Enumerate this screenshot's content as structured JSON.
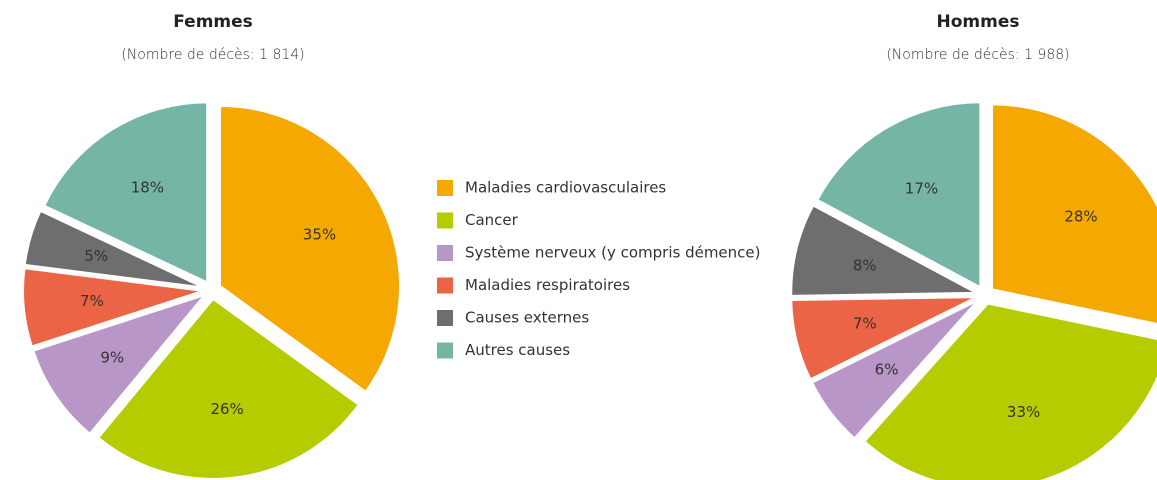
{
  "chart_data": [
    {
      "type": "pie",
      "title": "Femmes",
      "subtitle": "(Nombre de décès: 1 814)",
      "categories": [
        "Maladies cardiovasculaires",
        "Cancer",
        "Système nerveux (y compris démence)",
        "Maladies respiratoires",
        "Causes externes",
        "Autres causes"
      ],
      "values": [
        35,
        26,
        9,
        7,
        5,
        18
      ],
      "value_labels": [
        "35%",
        "26%",
        "9%",
        "7%",
        "5%",
        "18%"
      ],
      "colors": [
        "#f5a800",
        "#b5cc00",
        "#b996c8",
        "#ec6446",
        "#6e6e6e",
        "#75b5a5"
      ]
    },
    {
      "type": "pie",
      "title": "Hommes",
      "subtitle": "(Nombre de décès: 1 988)",
      "categories": [
        "Maladies cardiovasculaires",
        "Cancer",
        "Système nerveux (y compris démence)",
        "Maladies respiratoires",
        "Causes externes",
        "Autres causes"
      ],
      "values": [
        28,
        33,
        6,
        7,
        8,
        17
      ],
      "value_labels": [
        "28%",
        "33%",
        "6%",
        "7%",
        "8%",
        "17%"
      ],
      "colors": [
        "#f5a800",
        "#b5cc00",
        "#b996c8",
        "#ec6446",
        "#6e6e6e",
        "#75b5a5"
      ]
    }
  ]
}
